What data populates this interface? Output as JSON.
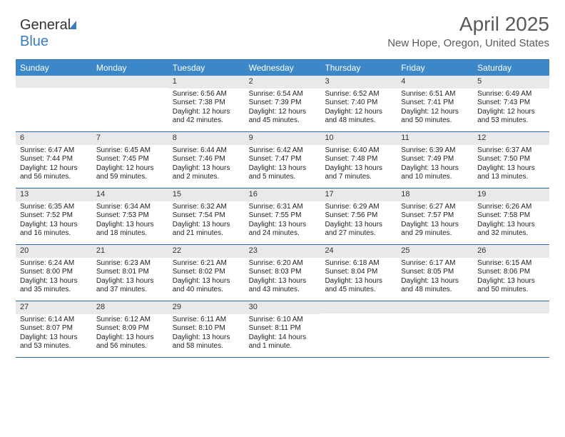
{
  "brand": {
    "part1": "General",
    "part2": "Blue"
  },
  "title": "April 2025",
  "location": "New Hope, Oregon, United States",
  "colors": {
    "header_bg": "#3c87c7",
    "header_text": "#ffffff",
    "daynum_bg": "#e7e9eb",
    "rule": "#2a6aa8",
    "text": "#222222",
    "title_text": "#5a5a5a"
  },
  "day_names": [
    "Sunday",
    "Monday",
    "Tuesday",
    "Wednesday",
    "Thursday",
    "Friday",
    "Saturday"
  ],
  "weeks": [
    [
      {
        "empty": true
      },
      {
        "empty": true
      },
      {
        "day": "1",
        "sunrise": "Sunrise: 6:56 AM",
        "sunset": "Sunset: 7:38 PM",
        "daylight1": "Daylight: 12 hours",
        "daylight2": "and 42 minutes."
      },
      {
        "day": "2",
        "sunrise": "Sunrise: 6:54 AM",
        "sunset": "Sunset: 7:39 PM",
        "daylight1": "Daylight: 12 hours",
        "daylight2": "and 45 minutes."
      },
      {
        "day": "3",
        "sunrise": "Sunrise: 6:52 AM",
        "sunset": "Sunset: 7:40 PM",
        "daylight1": "Daylight: 12 hours",
        "daylight2": "and 48 minutes."
      },
      {
        "day": "4",
        "sunrise": "Sunrise: 6:51 AM",
        "sunset": "Sunset: 7:41 PM",
        "daylight1": "Daylight: 12 hours",
        "daylight2": "and 50 minutes."
      },
      {
        "day": "5",
        "sunrise": "Sunrise: 6:49 AM",
        "sunset": "Sunset: 7:43 PM",
        "daylight1": "Daylight: 12 hours",
        "daylight2": "and 53 minutes."
      }
    ],
    [
      {
        "day": "6",
        "sunrise": "Sunrise: 6:47 AM",
        "sunset": "Sunset: 7:44 PM",
        "daylight1": "Daylight: 12 hours",
        "daylight2": "and 56 minutes."
      },
      {
        "day": "7",
        "sunrise": "Sunrise: 6:45 AM",
        "sunset": "Sunset: 7:45 PM",
        "daylight1": "Daylight: 12 hours",
        "daylight2": "and 59 minutes."
      },
      {
        "day": "8",
        "sunrise": "Sunrise: 6:44 AM",
        "sunset": "Sunset: 7:46 PM",
        "daylight1": "Daylight: 13 hours",
        "daylight2": "and 2 minutes."
      },
      {
        "day": "9",
        "sunrise": "Sunrise: 6:42 AM",
        "sunset": "Sunset: 7:47 PM",
        "daylight1": "Daylight: 13 hours",
        "daylight2": "and 5 minutes."
      },
      {
        "day": "10",
        "sunrise": "Sunrise: 6:40 AM",
        "sunset": "Sunset: 7:48 PM",
        "daylight1": "Daylight: 13 hours",
        "daylight2": "and 7 minutes."
      },
      {
        "day": "11",
        "sunrise": "Sunrise: 6:39 AM",
        "sunset": "Sunset: 7:49 PM",
        "daylight1": "Daylight: 13 hours",
        "daylight2": "and 10 minutes."
      },
      {
        "day": "12",
        "sunrise": "Sunrise: 6:37 AM",
        "sunset": "Sunset: 7:50 PM",
        "daylight1": "Daylight: 13 hours",
        "daylight2": "and 13 minutes."
      }
    ],
    [
      {
        "day": "13",
        "sunrise": "Sunrise: 6:35 AM",
        "sunset": "Sunset: 7:52 PM",
        "daylight1": "Daylight: 13 hours",
        "daylight2": "and 16 minutes."
      },
      {
        "day": "14",
        "sunrise": "Sunrise: 6:34 AM",
        "sunset": "Sunset: 7:53 PM",
        "daylight1": "Daylight: 13 hours",
        "daylight2": "and 18 minutes."
      },
      {
        "day": "15",
        "sunrise": "Sunrise: 6:32 AM",
        "sunset": "Sunset: 7:54 PM",
        "daylight1": "Daylight: 13 hours",
        "daylight2": "and 21 minutes."
      },
      {
        "day": "16",
        "sunrise": "Sunrise: 6:31 AM",
        "sunset": "Sunset: 7:55 PM",
        "daylight1": "Daylight: 13 hours",
        "daylight2": "and 24 minutes."
      },
      {
        "day": "17",
        "sunrise": "Sunrise: 6:29 AM",
        "sunset": "Sunset: 7:56 PM",
        "daylight1": "Daylight: 13 hours",
        "daylight2": "and 27 minutes."
      },
      {
        "day": "18",
        "sunrise": "Sunrise: 6:27 AM",
        "sunset": "Sunset: 7:57 PM",
        "daylight1": "Daylight: 13 hours",
        "daylight2": "and 29 minutes."
      },
      {
        "day": "19",
        "sunrise": "Sunrise: 6:26 AM",
        "sunset": "Sunset: 7:58 PM",
        "daylight1": "Daylight: 13 hours",
        "daylight2": "and 32 minutes."
      }
    ],
    [
      {
        "day": "20",
        "sunrise": "Sunrise: 6:24 AM",
        "sunset": "Sunset: 8:00 PM",
        "daylight1": "Daylight: 13 hours",
        "daylight2": "and 35 minutes."
      },
      {
        "day": "21",
        "sunrise": "Sunrise: 6:23 AM",
        "sunset": "Sunset: 8:01 PM",
        "daylight1": "Daylight: 13 hours",
        "daylight2": "and 37 minutes."
      },
      {
        "day": "22",
        "sunrise": "Sunrise: 6:21 AM",
        "sunset": "Sunset: 8:02 PM",
        "daylight1": "Daylight: 13 hours",
        "daylight2": "and 40 minutes."
      },
      {
        "day": "23",
        "sunrise": "Sunrise: 6:20 AM",
        "sunset": "Sunset: 8:03 PM",
        "daylight1": "Daylight: 13 hours",
        "daylight2": "and 43 minutes."
      },
      {
        "day": "24",
        "sunrise": "Sunrise: 6:18 AM",
        "sunset": "Sunset: 8:04 PM",
        "daylight1": "Daylight: 13 hours",
        "daylight2": "and 45 minutes."
      },
      {
        "day": "25",
        "sunrise": "Sunrise: 6:17 AM",
        "sunset": "Sunset: 8:05 PM",
        "daylight1": "Daylight: 13 hours",
        "daylight2": "and 48 minutes."
      },
      {
        "day": "26",
        "sunrise": "Sunrise: 6:15 AM",
        "sunset": "Sunset: 8:06 PM",
        "daylight1": "Daylight: 13 hours",
        "daylight2": "and 50 minutes."
      }
    ],
    [
      {
        "day": "27",
        "sunrise": "Sunrise: 6:14 AM",
        "sunset": "Sunset: 8:07 PM",
        "daylight1": "Daylight: 13 hours",
        "daylight2": "and 53 minutes."
      },
      {
        "day": "28",
        "sunrise": "Sunrise: 6:12 AM",
        "sunset": "Sunset: 8:09 PM",
        "daylight1": "Daylight: 13 hours",
        "daylight2": "and 56 minutes."
      },
      {
        "day": "29",
        "sunrise": "Sunrise: 6:11 AM",
        "sunset": "Sunset: 8:10 PM",
        "daylight1": "Daylight: 13 hours",
        "daylight2": "and 58 minutes."
      },
      {
        "day": "30",
        "sunrise": "Sunrise: 6:10 AM",
        "sunset": "Sunset: 8:11 PM",
        "daylight1": "Daylight: 14 hours",
        "daylight2": "and 1 minute."
      },
      {
        "empty": true
      },
      {
        "empty": true
      },
      {
        "empty": true
      }
    ]
  ]
}
